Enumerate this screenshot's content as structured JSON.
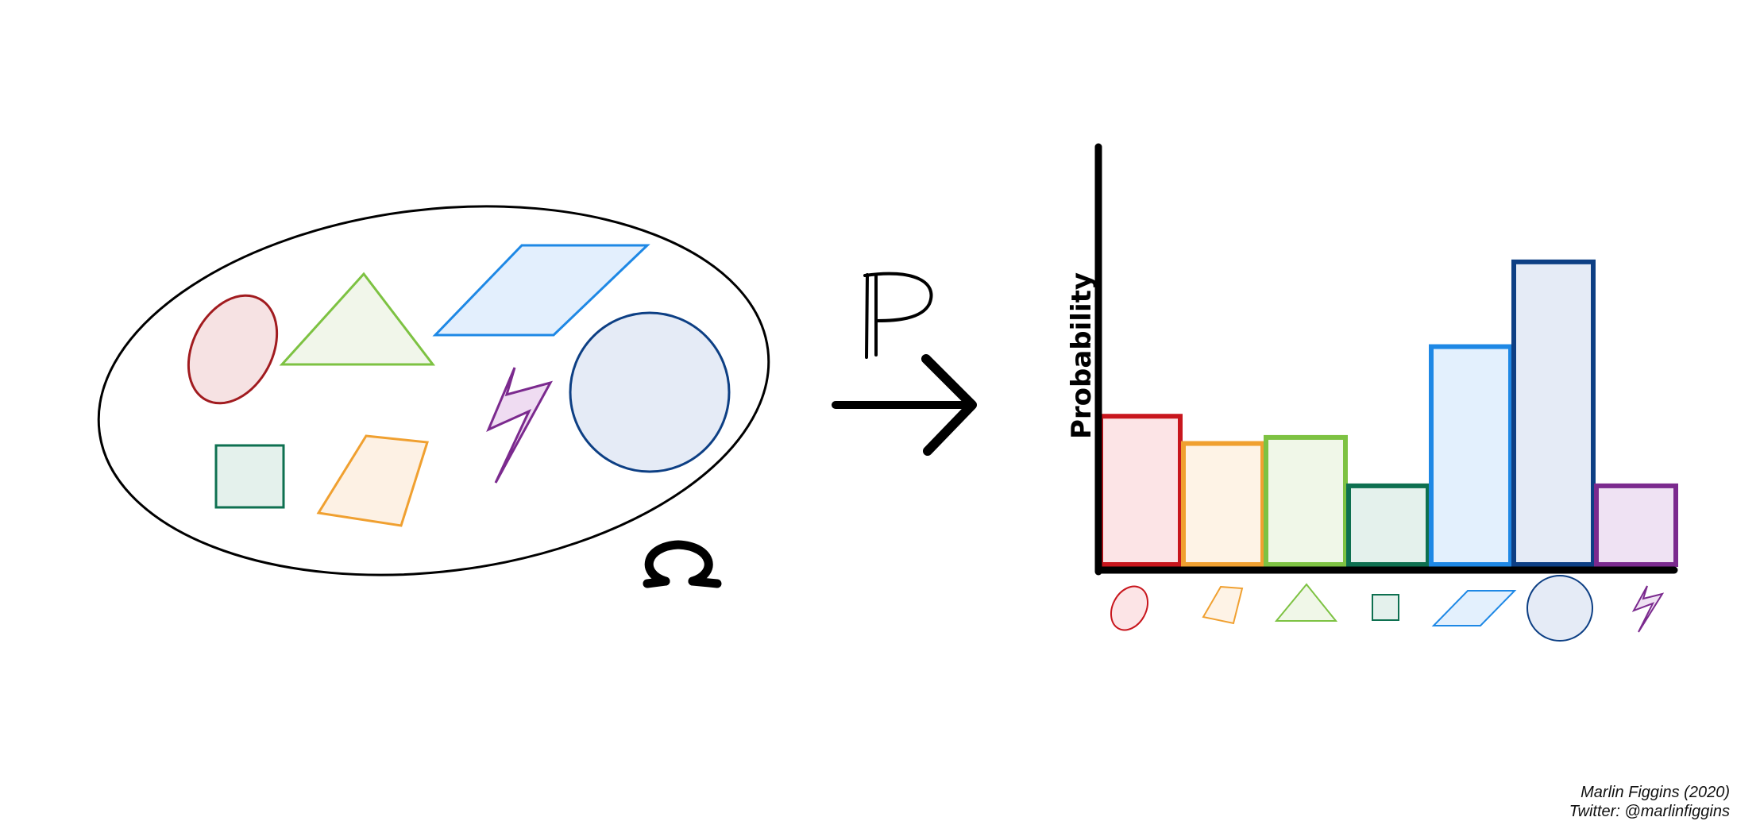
{
  "omega": {
    "symbol": "Ω"
  },
  "arrow": {
    "symbol": "ℙ"
  },
  "chart_data": {
    "type": "bar",
    "ylabel": "Probability",
    "categories": [
      "ellipse",
      "trapezoid",
      "triangle",
      "square",
      "parallelogram",
      "circle",
      "lightning"
    ],
    "values": [
      0.245,
      0.2,
      0.21,
      0.13,
      0.36,
      0.5,
      0.13
    ],
    "ylim": [
      0,
      0.69
    ],
    "grid": false,
    "colors": {
      "ellipse": {
        "stroke": "#c8161d",
        "fill": "#fce4e6"
      },
      "trapezoid": {
        "stroke": "#f0a030",
        "fill": "#fef3e6"
      },
      "triangle": {
        "stroke": "#7dc242",
        "fill": "#f0f7e8"
      },
      "square": {
        "stroke": "#0e7050",
        "fill": "#e4f1ec"
      },
      "parallelogram": {
        "stroke": "#1e88e5",
        "fill": "#e3f0fd"
      },
      "circle": {
        "stroke": "#0d3f84",
        "fill": "#e5ebf6"
      },
      "lightning": {
        "stroke": "#7b2a8e",
        "fill": "#efe2f3"
      }
    }
  },
  "credit": {
    "author": "Marlin Figgins (2020)",
    "twitter": "Twitter: @marlinfiggins"
  }
}
